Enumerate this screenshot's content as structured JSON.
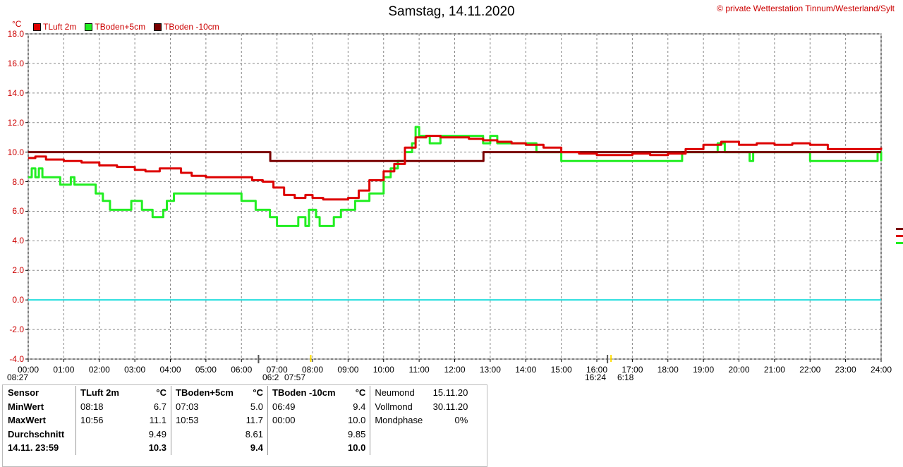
{
  "title": "Samstag, 14.11.2020",
  "copyright": "© private Wetterstation Tinnum/Westerland/Sylt",
  "unit": "°C",
  "legend": [
    {
      "name": "TLuft 2m",
      "color": "#dd0000"
    },
    {
      "name": "TBoden+5cm",
      "color": "#22ee22"
    },
    {
      "name": "TBoden -10cm",
      "color": "#7a0000"
    }
  ],
  "markers": {
    "left": "08:27",
    "sunrise": "06:2",
    "rise2": "07:57",
    "sunset": "16:24",
    "set2": "6:18"
  },
  "stats": {
    "header": [
      "Sensor",
      "TLuft 2m",
      "°C",
      "TBoden+5cm",
      "°C",
      "TBoden -10cm",
      "°C"
    ],
    "rows": [
      {
        "label": "MinWert",
        "t1": "08:18",
        "v1": "6.7",
        "t2": "07:03",
        "v2": "5.0",
        "t3": "06:49",
        "v3": "9.4"
      },
      {
        "label": "MaxWert",
        "t1": "10:56",
        "v1": "11.1",
        "t2": "10:53",
        "v2": "11.7",
        "t3": "00:00",
        "v3": "10.0"
      },
      {
        "label": "Durchschnitt",
        "t1": "",
        "v1": "9.49",
        "t2": "",
        "v2": "8.61",
        "t3": "",
        "v3": "9.85"
      },
      {
        "label": "14.11. 23:59",
        "t1": "",
        "v1": "10.3",
        "t2": "",
        "v2": "9.4",
        "t3": "",
        "v3": "10.0"
      }
    ],
    "moon": [
      {
        "label": "Neumond",
        "value": "15.11.20"
      },
      {
        "label": "Vollmond",
        "value": "30.11.20"
      },
      {
        "label": "Mondphase",
        "value": "0%"
      }
    ]
  },
  "chart_data": {
    "type": "line",
    "title": "Samstag, 14.11.2020",
    "ylabel": "°C",
    "ylim": [
      -4.0,
      18.0
    ],
    "xlim": [
      0,
      24
    ],
    "yticks": [
      "18.0",
      "16.0",
      "14.0",
      "12.0",
      "10.0",
      "8.0",
      "6.0",
      "4.0",
      "2.0",
      "0.0",
      "-2.0",
      "-4.0"
    ],
    "xticks": [
      "00:00",
      "01:00",
      "02:00",
      "03:00",
      "04:00",
      "05:00",
      "06:00",
      "07:00",
      "08:00",
      "09:00",
      "10:00",
      "11:00",
      "12:00",
      "13:00",
      "14:00",
      "15:00",
      "16:00",
      "17:00",
      "18:00",
      "19:00",
      "20:00",
      "21:00",
      "22:00",
      "23:00",
      "24:00"
    ],
    "grid": true,
    "series": [
      {
        "name": "TLuft 2m",
        "color": "#dd0000",
        "x": [
          0,
          0.2,
          0.5,
          1,
          1.5,
          2,
          2.5,
          3,
          3.3,
          3.7,
          4,
          4.3,
          4.6,
          5,
          5.5,
          6,
          6.3,
          6.6,
          6.9,
          7.2,
          7.5,
          7.8,
          8,
          8.3,
          8.6,
          9,
          9.3,
          9.6,
          10,
          10.3,
          10.6,
          10.9,
          11.2,
          11.6,
          12,
          12.4,
          12.8,
          13.2,
          13.6,
          14,
          14.5,
          15,
          15.5,
          16,
          16.5,
          17,
          17.5,
          18,
          18.5,
          19,
          19.5,
          20,
          20.5,
          21,
          21.5,
          22,
          22.5,
          23,
          23.5,
          24
        ],
        "y": [
          9.6,
          9.7,
          9.5,
          9.4,
          9.3,
          9.1,
          9.0,
          8.8,
          8.7,
          8.9,
          8.9,
          8.6,
          8.4,
          8.3,
          8.3,
          8.3,
          8.1,
          8.0,
          7.6,
          7.1,
          6.9,
          7.1,
          6.9,
          6.8,
          6.8,
          6.9,
          7.4,
          8.1,
          8.7,
          9.2,
          10.3,
          11.0,
          11.1,
          11.0,
          11.0,
          10.9,
          10.8,
          10.7,
          10.6,
          10.5,
          10.3,
          10.0,
          9.9,
          9.8,
          9.8,
          9.9,
          9.8,
          9.9,
          10.2,
          10.5,
          10.7,
          10.5,
          10.6,
          10.5,
          10.6,
          10.5,
          10.2,
          10.2,
          10.2,
          10.3
        ]
      },
      {
        "name": "TBoden+5cm",
        "color": "#22ee22",
        "x": [
          0,
          0.1,
          0.2,
          0.3,
          0.4,
          0.8,
          0.9,
          1.0,
          1.2,
          1.3,
          1.6,
          1.9,
          2.1,
          2.3,
          2.9,
          3.2,
          3.5,
          3.8,
          3.9,
          4.0,
          4.1,
          4.3,
          5.3,
          5.5,
          6.0,
          6.4,
          6.8,
          7.0,
          7.3,
          7.6,
          7.8,
          7.9,
          8.1,
          8.2,
          8.4,
          8.6,
          8.8,
          9.2,
          9.6,
          10.0,
          10.2,
          10.4,
          10.6,
          10.8,
          10.9,
          11.0,
          11.3,
          11.6,
          12.0,
          12.3,
          12.6,
          12.8,
          13.0,
          13.2,
          13.5,
          13.8,
          14.0,
          14.3,
          14.7,
          15.0,
          15.5,
          16.0,
          16.5,
          17.0,
          17.5,
          18.0,
          18.4,
          19.0,
          19.4,
          19.5,
          19.6,
          20.0,
          20.3,
          20.4,
          20.6,
          21.0,
          21.5,
          22.0,
          22.5,
          23.0,
          23.5,
          23.8,
          23.9,
          24
        ],
        "y": [
          8.3,
          8.9,
          8.3,
          8.9,
          8.3,
          8.3,
          7.8,
          7.8,
          8.3,
          7.8,
          7.8,
          7.2,
          6.7,
          6.1,
          6.7,
          6.1,
          5.6,
          6.1,
          6.7,
          6.7,
          7.2,
          7.2,
          7.2,
          7.2,
          6.7,
          6.1,
          5.6,
          5.0,
          5.0,
          5.6,
          5.0,
          6.1,
          5.6,
          5.0,
          5.0,
          5.6,
          6.1,
          6.7,
          7.2,
          8.3,
          8.9,
          9.4,
          10.0,
          10.6,
          11.7,
          11.1,
          10.6,
          11.1,
          11.1,
          11.1,
          11.1,
          10.6,
          11.1,
          10.6,
          10.6,
          10.6,
          10.6,
          10.0,
          10.0,
          9.4,
          9.4,
          9.4,
          9.4,
          9.4,
          9.4,
          9.4,
          10.0,
          10.0,
          10.6,
          10.6,
          10.0,
          10.0,
          9.4,
          10.0,
          10.0,
          10.0,
          10.0,
          9.4,
          9.4,
          9.4,
          9.4,
          9.4,
          10.0,
          9.4
        ]
      },
      {
        "name": "TBoden -10cm",
        "color": "#7a0000",
        "x": [
          0,
          6.8,
          6.81,
          12.8,
          12.81,
          24
        ],
        "y": [
          10.0,
          10.0,
          9.4,
          9.4,
          10.0,
          10.0
        ]
      }
    ]
  }
}
